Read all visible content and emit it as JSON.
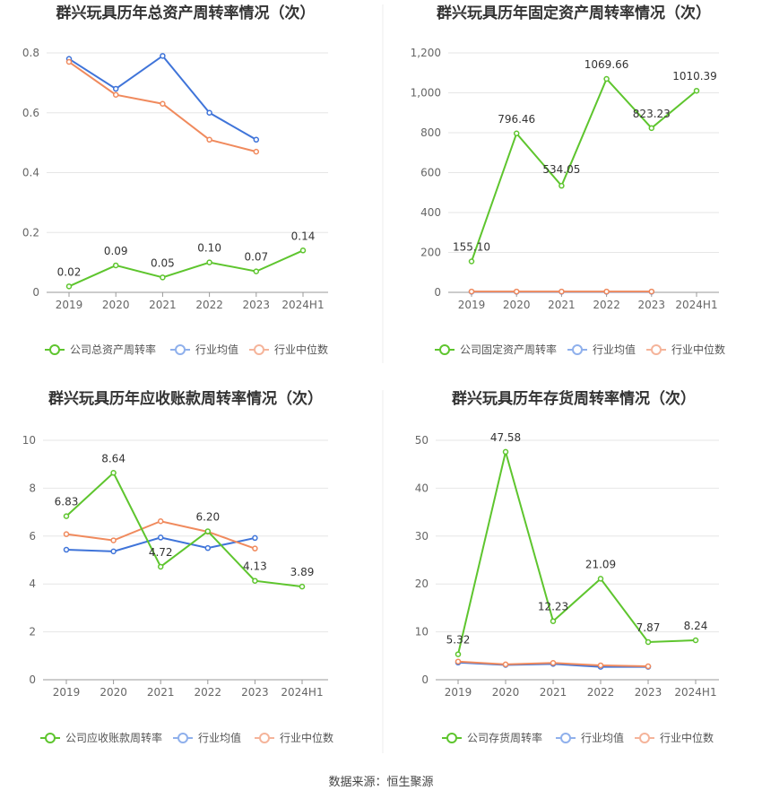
{
  "source": "数据来源：恒生聚源",
  "colors": {
    "company": "#5ec52e",
    "avg": "#3f74d9",
    "median": "#f08a5d"
  },
  "chart_data": [
    {
      "type": "line",
      "title": "群兴玩具历年总资产周转率情况（次）",
      "categories": [
        "2019",
        "2020",
        "2021",
        "2022",
        "2023",
        "2024H1"
      ],
      "ylim": [
        0,
        0.8
      ],
      "yticks": [
        "0",
        "0.2",
        "0.4",
        "0.6",
        "0.8"
      ],
      "yticks_values": [
        0,
        0.2,
        0.4,
        0.6,
        0.8
      ],
      "legend": "bottom",
      "series": [
        {
          "name": "公司总资产周转率",
          "color": "#5ec52e",
          "values": [
            0.02,
            0.09,
            0.05,
            0.1,
            0.07,
            0.14
          ],
          "labels": [
            "0.02",
            "0.09",
            "0.05",
            "0.10",
            "0.07",
            "0.14"
          ]
        },
        {
          "name": "行业均值",
          "color": "#3f74d9",
          "values": [
            0.78,
            0.68,
            0.79,
            0.6,
            0.51,
            null
          ]
        },
        {
          "name": "行业中位数",
          "color": "#f08a5d",
          "values": [
            0.77,
            0.66,
            0.63,
            0.51,
            0.47,
            null
          ]
        }
      ]
    },
    {
      "type": "line",
      "title": "群兴玩具历年固定资产周转率情况（次）",
      "categories": [
        "2019",
        "2020",
        "2021",
        "2022",
        "2023",
        "2024H1"
      ],
      "ylim": [
        0,
        1200
      ],
      "yticks": [
        "0",
        "200",
        "400",
        "600",
        "800",
        "1,000",
        "1,200"
      ],
      "yticks_values": [
        0,
        200,
        400,
        600,
        800,
        1000,
        1200
      ],
      "legend": "bottom",
      "series": [
        {
          "name": "公司固定资产周转率",
          "color": "#5ec52e",
          "values": [
            155.1,
            796.46,
            534.05,
            1069.66,
            823.23,
            1010.39
          ],
          "labels": [
            "155.10",
            "796.46",
            "534.05",
            "1069.66",
            "823.23",
            "1010.39"
          ]
        },
        {
          "name": "行业均值",
          "color": "#3f74d9",
          "values": [
            3,
            3,
            3,
            3,
            3,
            null
          ]
        },
        {
          "name": "行业中位数",
          "color": "#f08a5d",
          "values": [
            4,
            4,
            4,
            4,
            4,
            null
          ]
        }
      ]
    },
    {
      "type": "line",
      "title": "群兴玩具历年应收账款周转率情况（次）",
      "categories": [
        "2019",
        "2020",
        "2021",
        "2022",
        "2023",
        "2024H1"
      ],
      "ylim": [
        0,
        10
      ],
      "yticks": [
        "0",
        "2",
        "4",
        "6",
        "8",
        "10"
      ],
      "yticks_values": [
        0,
        2,
        4,
        6,
        8,
        10
      ],
      "legend": "bottom",
      "series": [
        {
          "name": "公司应收账款周转率",
          "color": "#5ec52e",
          "values": [
            6.83,
            8.64,
            4.72,
            6.2,
            4.13,
            3.89
          ],
          "labels": [
            "6.83",
            "8.64",
            "4.72",
            "6.20",
            "4.13",
            "3.89"
          ]
        },
        {
          "name": "行业均值",
          "color": "#3f74d9",
          "values": [
            5.43,
            5.36,
            5.94,
            5.5,
            5.92,
            null
          ]
        },
        {
          "name": "行业中位数",
          "color": "#f08a5d",
          "values": [
            6.08,
            5.82,
            6.62,
            6.18,
            5.48,
            null
          ]
        }
      ]
    },
    {
      "type": "line",
      "title": "群兴玩具历年存货周转率情况（次）",
      "categories": [
        "2019",
        "2020",
        "2021",
        "2022",
        "2023",
        "2024H1"
      ],
      "ylim": [
        0,
        50
      ],
      "yticks": [
        "0",
        "10",
        "20",
        "30",
        "40",
        "50"
      ],
      "yticks_values": [
        0,
        10,
        20,
        30,
        40,
        50
      ],
      "legend": "bottom",
      "series": [
        {
          "name": "公司存货周转率",
          "color": "#5ec52e",
          "values": [
            5.32,
            47.58,
            12.23,
            21.09,
            7.87,
            8.24
          ],
          "labels": [
            "5.32",
            "47.58",
            "12.23",
            "21.09",
            "7.87",
            "8.24"
          ]
        },
        {
          "name": "行业均值",
          "color": "#3f74d9",
          "values": [
            3.6,
            3.1,
            3.3,
            2.7,
            2.7,
            null
          ]
        },
        {
          "name": "行业中位数",
          "color": "#f08a5d",
          "values": [
            3.8,
            3.2,
            3.5,
            3.0,
            2.8,
            null
          ]
        }
      ]
    }
  ]
}
